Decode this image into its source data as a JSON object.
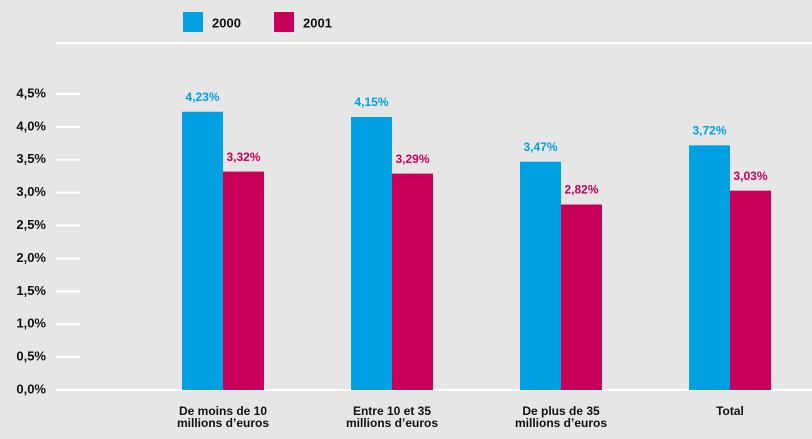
{
  "chart_data": {
    "type": "bar",
    "categories": [
      "De moins de 10\nmillions d’euros",
      "Entre 10 et 35\nmillions d’euros",
      "De plus de 35\nmillions d’euros",
      "Total"
    ],
    "series": [
      {
        "name": "2000",
        "color": "#00a0e3",
        "values": [
          4.23,
          4.15,
          3.47,
          3.72
        ],
        "value_labels": [
          "4,23%",
          "4,15%",
          "3,47%",
          "3,72%"
        ]
      },
      {
        "name": "2001",
        "color": "#c8005a",
        "values": [
          3.32,
          3.29,
          2.82,
          3.03
        ],
        "value_labels": [
          "3,32%",
          "3,29%",
          "2,82%",
          "3,03%"
        ]
      }
    ],
    "ylim": [
      0,
      4.5
    ],
    "yticks": [
      {
        "value": 0,
        "label": "0,0%"
      },
      {
        "value": 0.5,
        "label": "0,5%"
      },
      {
        "value": 1,
        "label": "1,0%"
      },
      {
        "value": 1.5,
        "label": "1,5%"
      },
      {
        "value": 2,
        "label": "2,0%"
      },
      {
        "value": 2.5,
        "label": "2,5%"
      },
      {
        "value": 3,
        "label": "3,0%"
      },
      {
        "value": 3.5,
        "label": "3,5%"
      },
      {
        "value": 4,
        "label": "4,0%"
      },
      {
        "value": 4.5,
        "label": "4,5%"
      }
    ],
    "legend": "top"
  }
}
